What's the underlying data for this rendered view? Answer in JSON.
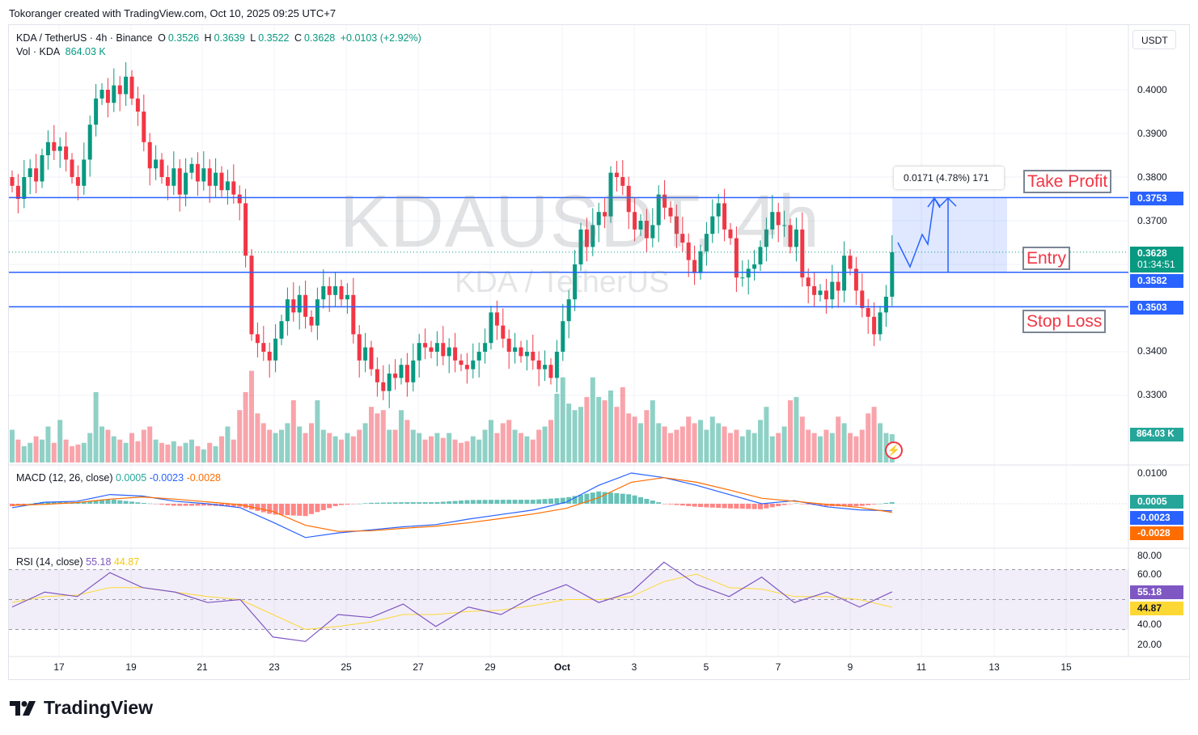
{
  "credit": "Tokoranger created with TradingView.com, Oct 10, 2025 09:25 UTC+7",
  "legend": {
    "symbol": "KDA / TetherUS · 4h · Binance",
    "o_label": "O",
    "o": "0.3526",
    "h_label": "H",
    "h": "0.3639",
    "l_label": "L",
    "l": "0.3522",
    "c_label": "C",
    "c": "0.3628",
    "change": "+0.0103 (+2.92%)",
    "vol_label": "Vol · KDA",
    "vol": "864.03 K"
  },
  "currency": "USDT",
  "watermark": {
    "big": "KDAUSDT, 4h",
    "small": "KDA / TetherUS"
  },
  "price_ticks": [
    "0.4000",
    "0.3900",
    "0.3800",
    "0.3700",
    "0.3400",
    "0.3300"
  ],
  "price_tags": {
    "tp": "0.3753",
    "last": "0.3628",
    "countdown": "01:34:51",
    "entry": "0.3582",
    "sl": "0.3503",
    "volume": "864.03 K"
  },
  "annotations": {
    "take_profit": "Take Profit",
    "entry": "Entry",
    "stop_loss": "Stop Loss",
    "measure": "0.0171 (4.78%) 171"
  },
  "macd": {
    "title": "MACD (12, 26, close)",
    "hist": "0.0005",
    "macd": "-0.0023",
    "signal": "-0.0028",
    "tick": "0.0100"
  },
  "rsi": {
    "title": "RSI (14, close)",
    "value": "55.18",
    "ma": "44.87",
    "ticks": [
      "80.00",
      "60.00",
      "40.00",
      "20.00"
    ]
  },
  "time_ticks": [
    "17",
    "19",
    "21",
    "23",
    "25",
    "27",
    "29",
    "Oct",
    "3",
    "5",
    "7",
    "9",
    "11",
    "13",
    "15"
  ],
  "logo": "TradingView",
  "colors": {
    "up": "#089981",
    "down": "#f23645",
    "line": "#2962ff",
    "macd_signal": "#ff6d00",
    "rsi": "#7e57c2",
    "rsi_ma": "#fdd835"
  },
  "chart_data": {
    "type": "candlestick",
    "title": "KDA / TetherUS · 4h · Binance",
    "ylim": [
      0.325,
      0.405
    ],
    "levels": {
      "take_profit": 0.3753,
      "entry": 0.3582,
      "stop_loss": 0.3503,
      "last": 0.3628
    },
    "closes": [
      0.378,
      0.375,
      0.38,
      0.382,
      0.379,
      0.385,
      0.388,
      0.386,
      0.387,
      0.384,
      0.38,
      0.378,
      0.384,
      0.392,
      0.398,
      0.4,
      0.397,
      0.401,
      0.399,
      0.403,
      0.398,
      0.395,
      0.388,
      0.382,
      0.384,
      0.38,
      0.378,
      0.382,
      0.376,
      0.381,
      0.383,
      0.379,
      0.382,
      0.378,
      0.381,
      0.377,
      0.379,
      0.376,
      0.374,
      0.362,
      0.344,
      0.342,
      0.34,
      0.338,
      0.343,
      0.347,
      0.352,
      0.349,
      0.353,
      0.348,
      0.346,
      0.352,
      0.355,
      0.353,
      0.355,
      0.352,
      0.353,
      0.344,
      0.338,
      0.341,
      0.336,
      0.333,
      0.331,
      0.335,
      0.334,
      0.337,
      0.333,
      0.338,
      0.342,
      0.341,
      0.34,
      0.342,
      0.339,
      0.341,
      0.338,
      0.337,
      0.336,
      0.338,
      0.34,
      0.342,
      0.349,
      0.346,
      0.343,
      0.34,
      0.341,
      0.339,
      0.34,
      0.338,
      0.336,
      0.337,
      0.334,
      0.34,
      0.347,
      0.352,
      0.36,
      0.368,
      0.364,
      0.369,
      0.372,
      0.371,
      0.381,
      0.38,
      0.378,
      0.372,
      0.368,
      0.37,
      0.366,
      0.369,
      0.376,
      0.373,
      0.371,
      0.367,
      0.365,
      0.361,
      0.358,
      0.363,
      0.367,
      0.371,
      0.374,
      0.368,
      0.366,
      0.357,
      0.357,
      0.359,
      0.36,
      0.364,
      0.368,
      0.372,
      0.369,
      0.369,
      0.364,
      0.368,
      0.357,
      0.355,
      0.353,
      0.354,
      0.352,
      0.356,
      0.354,
      0.362,
      0.359,
      0.354,
      0.35,
      0.348,
      0.344,
      0.349,
      0.3526,
      0.3628
    ],
    "volumes_k": [
      1000,
      700,
      500,
      600,
      800,
      700,
      1100,
      600,
      1300,
      700,
      500,
      550,
      600,
      900,
      2150,
      1100,
      1000,
      800,
      700,
      600,
      900,
      650,
      1000,
      1100,
      700,
      600,
      550,
      650,
      500,
      600,
      700,
      500,
      400,
      600,
      500,
      800,
      1100,
      700,
      1600,
      2150,
      2800,
      1500,
      1200,
      1000,
      900,
      1000,
      1200,
      1900,
      1100,
      900,
      1200,
      1900,
      1000,
      900,
      800,
      700,
      900,
      800,
      1000,
      1200,
      1700,
      1500,
      1600,
      1000,
      1000,
      1600,
      1300,
      1000,
      900,
      700,
      800,
      900,
      750,
      900,
      700,
      600,
      650,
      800,
      700,
      1000,
      1300,
      900,
      1200,
      1300,
      1000,
      900,
      800,
      700,
      1000,
      1100,
      1300,
      2100,
      2600,
      1800,
      1600,
      1700,
      2000,
      2600,
      2000,
      1900,
      2200,
      1700,
      2300,
      1500,
      1400,
      1200,
      1600,
      1900,
      1200,
      1100,
      900,
      1000,
      1100,
      1400,
      1200,
      1300,
      1000,
      1400,
      1200,
      1100,
      900,
      1000,
      800,
      1000,
      900,
      1300,
      1700,
      800,
      900,
      1100,
      1900,
      2000,
      1400,
      1000,
      900,
      800,
      1000,
      900,
      1400,
      1200,
      900,
      800,
      1000,
      1500,
      1700,
      1200,
      900,
      864.03
    ],
    "macd_line": [
      -0.0013,
      0.0005,
      0.0008,
      0.003,
      0.0025,
      0.0008,
      0.0,
      -0.0013,
      -0.006,
      -0.011,
      -0.0095,
      -0.0085,
      -0.0075,
      -0.0068,
      -0.005,
      -0.0035,
      -0.002,
      0.0005,
      0.006,
      0.01,
      0.0085,
      0.006,
      0.003,
      0.0,
      0.001,
      -0.001,
      -0.002,
      -0.0023
    ],
    "macd_signal": [
      -0.0005,
      -0.0002,
      0.0004,
      0.0015,
      0.0022,
      0.0015,
      0.0006,
      -0.0003,
      -0.0025,
      -0.007,
      -0.009,
      -0.0088,
      -0.008,
      -0.0073,
      -0.0062,
      -0.0048,
      -0.0033,
      -0.0015,
      0.002,
      0.007,
      0.0085,
      0.007,
      0.0045,
      0.0018,
      0.0008,
      -0.0002,
      -0.0012,
      -0.0028
    ],
    "rsi_line": [
      45,
      55,
      52,
      68,
      58,
      55,
      48,
      50,
      25,
      22,
      40,
      38,
      47,
      32,
      45,
      40,
      52,
      60,
      48,
      55,
      75,
      60,
      52,
      65,
      48,
      55,
      45,
      55.18
    ],
    "rsi_ma": [
      48,
      52,
      53,
      58,
      58,
      55,
      52,
      50,
      40,
      30,
      32,
      35,
      40,
      40,
      42,
      43,
      46,
      50,
      50,
      52,
      62,
      67,
      58,
      57,
      52,
      52,
      50,
      44.87
    ]
  }
}
